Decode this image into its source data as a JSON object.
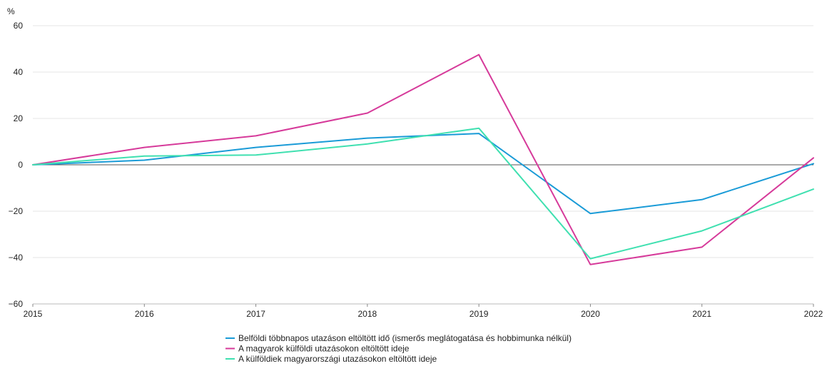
{
  "chart_data": {
    "type": "line",
    "title": "",
    "xlabel": "",
    "ylabel": "%",
    "x": [
      "2015",
      "2016",
      "2017",
      "2018",
      "2019",
      "2020",
      "2021",
      "2022"
    ],
    "ylim": [
      -60,
      60
    ],
    "yticks": [
      -60,
      -40,
      -20,
      0,
      20,
      40,
      60
    ],
    "y_tick_labels": [
      "−60",
      "−40",
      "−20",
      "0",
      "20",
      "40",
      "60"
    ],
    "grid": true,
    "legend_position": "bottom",
    "series": [
      {
        "name": "Belföldi többnapos utazáson eltöltött idő (ismerős meglátogatása és hobbimunka nélkül)",
        "color": "#1a9bd7",
        "values": [
          0,
          2,
          7.5,
          11.5,
          13.5,
          -21,
          -15,
          0.5
        ]
      },
      {
        "name": "A magyarok külföldi utazásokon eltöltött ideje",
        "color": "#d63a9a",
        "values": [
          0,
          7.5,
          12.5,
          22.3,
          47.5,
          -43,
          -35.5,
          3
        ]
      },
      {
        "name": "A külföldiek magyarországi utazásokon eltöltött ideje",
        "color": "#3fe0b0",
        "values": [
          0,
          3.8,
          4.2,
          9,
          15.8,
          -40.5,
          -28.5,
          -10.5
        ]
      }
    ]
  }
}
